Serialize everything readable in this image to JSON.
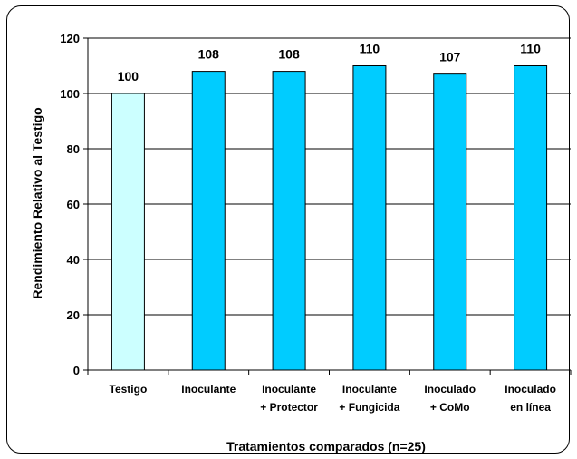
{
  "chart_data": {
    "type": "bar",
    "title": "",
    "xlabel": "Tratamientos comparados (n=25)",
    "ylabel": "Rendimiento Relativo al Testigo",
    "ylim": [
      0,
      120
    ],
    "yticks": [
      "0",
      "20",
      "40",
      "60",
      "80",
      "100",
      "120"
    ],
    "grid": "horizontal",
    "legend": "none",
    "categories": [
      [
        "Testigo"
      ],
      [
        "Inoculante"
      ],
      [
        "Inoculante",
        "+ Protector"
      ],
      [
        "Inoculante",
        "+ Fungicida"
      ],
      [
        "Inoculado",
        "+ CoMo"
      ],
      [
        "Inoculado",
        "en línea"
      ]
    ],
    "values": [
      100,
      108,
      108,
      110,
      107,
      110
    ],
    "data_labels": [
      "100",
      "108",
      "108",
      "110",
      "107",
      "110"
    ],
    "colors": {
      "first_bar": "#ccffff",
      "bars": "#00ccff",
      "bar_stroke": "#000000",
      "grid": "#000000"
    }
  }
}
